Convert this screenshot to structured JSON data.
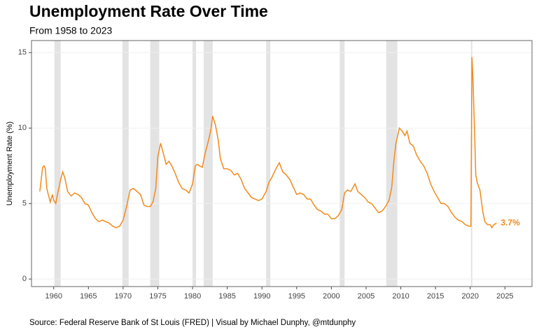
{
  "chart_data": {
    "type": "line",
    "title": "Unemployment Rate Over Time",
    "subtitle": "From 1958 to 2023",
    "ylabel": "Unemployment Rate (%)",
    "source": "Source: Federal Reserve Bank of St Louis (FRED) | Visual by Michael Dunphy, @mtdunphy",
    "annotation": "3.7%",
    "series": [
      {
        "name": "Unemployment Rate",
        "color": "#f28a1c",
        "x": [
          1958.0,
          1958.4,
          1958.6,
          1958.8,
          1959.0,
          1959.5,
          1959.8,
          1960.0,
          1960.3,
          1960.5,
          1961.0,
          1961.3,
          1961.6,
          1962.0,
          1962.5,
          1963.0,
          1963.5,
          1964.0,
          1964.5,
          1965.0,
          1965.5,
          1966.0,
          1966.5,
          1967.0,
          1967.5,
          1968.0,
          1968.5,
          1969.0,
          1969.5,
          1970.0,
          1970.5,
          1971.0,
          1971.5,
          1972.0,
          1972.5,
          1973.0,
          1973.5,
          1973.9,
          1974.3,
          1974.7,
          1975.0,
          1975.4,
          1975.8,
          1976.2,
          1976.6,
          1977.0,
          1977.5,
          1978.0,
          1978.5,
          1979.0,
          1979.5,
          1980.0,
          1980.4,
          1980.7,
          1981.0,
          1981.4,
          1981.8,
          1982.2,
          1982.6,
          1982.9,
          1983.3,
          1983.7,
          1984.0,
          1984.5,
          1985.0,
          1985.5,
          1986.0,
          1986.5,
          1987.0,
          1987.5,
          1988.0,
          1988.5,
          1989.0,
          1989.5,
          1990.0,
          1990.6,
          1991.0,
          1991.5,
          1992.0,
          1992.5,
          1993.0,
          1993.5,
          1994.0,
          1994.5,
          1995.0,
          1995.5,
          1996.0,
          1996.5,
          1997.0,
          1997.5,
          1998.0,
          1998.5,
          1999.0,
          1999.5,
          2000.0,
          2000.5,
          2001.0,
          2001.5,
          2001.9,
          2002.3,
          2002.8,
          2003.4,
          2003.8,
          2004.3,
          2004.8,
          2005.3,
          2005.8,
          2006.3,
          2006.8,
          2007.3,
          2007.8,
          2008.3,
          2008.7,
          2009.0,
          2009.3,
          2009.8,
          2010.2,
          2010.6,
          2010.9,
          2011.3,
          2011.8,
          2012.3,
          2012.8,
          2013.3,
          2013.8,
          2014.3,
          2014.8,
          2015.3,
          2015.8,
          2016.3,
          2016.8,
          2017.3,
          2017.8,
          2018.3,
          2018.8,
          2019.3,
          2019.8,
          2020.1,
          2020.25,
          2020.4,
          2020.6,
          2020.8,
          2021.0,
          2021.4,
          2021.8,
          2022.1,
          2022.5,
          2022.9,
          2023.1,
          2023.4,
          2023.8
        ],
        "values": [
          5.8,
          7.4,
          7.5,
          7.3,
          6.0,
          5.1,
          5.6,
          5.2,
          5.0,
          5.5,
          6.6,
          7.1,
          6.7,
          5.8,
          5.5,
          5.7,
          5.6,
          5.4,
          5.0,
          4.9,
          4.4,
          4.0,
          3.8,
          3.9,
          3.8,
          3.7,
          3.5,
          3.4,
          3.5,
          3.9,
          4.8,
          5.9,
          6.0,
          5.8,
          5.6,
          4.9,
          4.8,
          4.8,
          5.1,
          6.0,
          8.1,
          9.0,
          8.3,
          7.6,
          7.8,
          7.5,
          7.0,
          6.4,
          6.0,
          5.9,
          5.7,
          6.3,
          7.5,
          7.6,
          7.5,
          7.4,
          8.3,
          9.0,
          9.8,
          10.8,
          10.2,
          9.2,
          8.0,
          7.3,
          7.3,
          7.2,
          6.9,
          7.0,
          6.6,
          6.0,
          5.7,
          5.4,
          5.3,
          5.2,
          5.3,
          5.8,
          6.4,
          6.8,
          7.3,
          7.7,
          7.1,
          6.9,
          6.6,
          6.1,
          5.6,
          5.7,
          5.6,
          5.3,
          5.3,
          4.9,
          4.6,
          4.5,
          4.3,
          4.3,
          4.0,
          4.0,
          4.2,
          4.6,
          5.7,
          5.9,
          5.8,
          6.3,
          5.8,
          5.6,
          5.4,
          5.1,
          5.0,
          4.7,
          4.4,
          4.5,
          4.8,
          5.2,
          6.1,
          7.8,
          9.0,
          10.0,
          9.8,
          9.5,
          9.8,
          9.0,
          8.8,
          8.2,
          7.8,
          7.5,
          7.0,
          6.3,
          5.8,
          5.4,
          5.0,
          5.0,
          4.8,
          4.4,
          4.1,
          3.9,
          3.8,
          3.6,
          3.5,
          3.5,
          14.7,
          13.2,
          10.2,
          6.9,
          6.4,
          5.9,
          4.5,
          3.8,
          3.6,
          3.6,
          3.4,
          3.6,
          3.7
        ]
      }
    ],
    "recessions": [
      [
        1960.1,
        1961.0
      ],
      [
        1969.9,
        1970.8
      ],
      [
        1973.9,
        1975.2
      ],
      [
        1980.0,
        1980.5
      ],
      [
        1981.6,
        1982.9
      ],
      [
        1990.6,
        1991.2
      ],
      [
        2001.2,
        2001.9
      ],
      [
        2007.9,
        2009.5
      ],
      [
        2020.1,
        2020.3
      ]
    ],
    "recession_color": "#e3e3e3",
    "xlim": [
      1956.8,
      2028.9
    ],
    "ylim": [
      -0.5,
      15.8
    ],
    "xticks": [
      1960,
      1965,
      1970,
      1975,
      1980,
      1985,
      1990,
      1995,
      2000,
      2005,
      2010,
      2015,
      2020,
      2025
    ],
    "yticks": [
      0,
      5,
      10,
      15
    ],
    "grid": true
  }
}
